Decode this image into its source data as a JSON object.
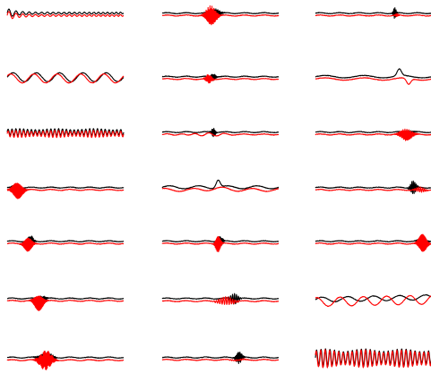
{
  "chart_data": {
    "type": "line",
    "layout": {
      "rows": 7,
      "columns": 3
    },
    "axes_visible": false,
    "grid": false,
    "legend": "none",
    "colors": {
      "series_a": "#000000",
      "series_b": "#ff0000",
      "background": "#ffffff"
    },
    "x_range": [
      0,
      1
    ],
    "y_range": [
      -1,
      1
    ],
    "panels": [
      {
        "row": 1,
        "col": 1,
        "pattern": "decaying-chirp",
        "series_a": {
          "offset": 0.12,
          "amplitude": 0.15,
          "burst_center": 0.02,
          "burst_width": 0.08,
          "cycles": 16
        },
        "series_b": {
          "offset": -0.12,
          "amplitude": 0.15,
          "burst_center": 0.02,
          "burst_width": 0.08,
          "cycles": 16
        }
      },
      {
        "row": 1,
        "col": 2,
        "pattern": "centered-burst",
        "series_a": {
          "offset": 0.12,
          "amplitude": 0.5,
          "burst_center": 0.45,
          "burst_width": 0.05,
          "cycles": 120
        },
        "series_b": {
          "offset": -0.12,
          "amplitude": 1.0,
          "burst_center": 0.42,
          "burst_width": 0.05,
          "cycles": 120
        }
      },
      {
        "row": 1,
        "col": 3,
        "pattern": "late-spike",
        "series_a": {
          "offset": 0.12,
          "amplitude": 0.55,
          "burst_center": 0.68,
          "burst_width": 0.015,
          "cycles": 100
        },
        "series_b": {
          "offset": -0.12,
          "amplitude": 0.15,
          "burst_center": 0.7,
          "burst_width": 0.02,
          "cycles": 100
        }
      },
      {
        "row": 2,
        "col": 1,
        "pattern": "sine",
        "series_a": {
          "offset": 0.06,
          "amplitude": 0.45,
          "cycles": 5.0,
          "phase": 0.0
        },
        "series_b": {
          "offset": -0.06,
          "amplitude": 0.45,
          "cycles": 5.0,
          "phase": 0.6
        }
      },
      {
        "row": 2,
        "col": 2,
        "pattern": "centered-burst",
        "series_a": {
          "offset": 0.12,
          "amplitude": 0.35,
          "burst_center": 0.44,
          "burst_width": 0.025,
          "cycles": 130
        },
        "series_b": {
          "offset": -0.12,
          "amplitude": 0.45,
          "burst_center": 0.4,
          "burst_width": 0.03,
          "cycles": 130
        }
      },
      {
        "row": 2,
        "col": 3,
        "pattern": "spike-dip",
        "series_a": {
          "offset": 0.12,
          "amplitude": 0.7,
          "burst_center": 0.72,
          "burst_width": 0.025
        },
        "series_b": {
          "offset": -0.12,
          "amplitude": 0.6,
          "burst_center": 0.8,
          "burst_width": 0.025
        }
      },
      {
        "row": 3,
        "col": 1,
        "pattern": "dense-oscillation",
        "series_a": {
          "offset": 0.12,
          "amplitude": 0.35,
          "cycles": 30
        },
        "series_b": {
          "offset": -0.06,
          "amplitude": 0.35,
          "cycles": 30
        }
      },
      {
        "row": 3,
        "col": 2,
        "pattern": "centered-burst",
        "series_a": {
          "offset": 0.12,
          "amplitude": 0.45,
          "burst_center": 0.44,
          "burst_width": 0.02,
          "cycles": 120
        },
        "series_b": {
          "offset": -0.12,
          "amplitude": 0.15,
          "burst_center": 0.35,
          "burst_width": 0.2,
          "cycles": 8
        }
      },
      {
        "row": 3,
        "col": 3,
        "pattern": "late-burst",
        "series_a": {
          "offset": 0.12,
          "amplitude": 0.2,
          "burst_center": 0.8,
          "burst_width": 0.05,
          "cycles": 70
        },
        "series_b": {
          "offset": -0.12,
          "amplitude": 0.6,
          "burst_center": 0.78,
          "burst_width": 0.06,
          "cycles": 120
        }
      },
      {
        "row": 4,
        "col": 1,
        "pattern": "early-burst",
        "series_a": {
          "offset": 0.12,
          "amplitude": 0.35,
          "burst_center": 0.08,
          "burst_width": 0.035,
          "cycles": 130
        },
        "series_b": {
          "offset": -0.12,
          "amplitude": 0.9,
          "burst_center": 0.09,
          "burst_width": 0.05,
          "cycles": 140
        }
      },
      {
        "row": 4,
        "col": 2,
        "pattern": "bumps",
        "series_a": {
          "offset": 0.15,
          "amplitude": 0.8,
          "burst_center": 0.48,
          "burst_width": 0.025
        },
        "series_b": {
          "offset": -0.12,
          "amplitude": 0.25,
          "burst_center": 0.48,
          "burst_width": 0.1
        }
      },
      {
        "row": 4,
        "col": 3,
        "pattern": "late-spike",
        "series_a": {
          "offset": 0.12,
          "amplitude": 0.7,
          "burst_center": 0.84,
          "burst_width": 0.03,
          "cycles": 80
        },
        "series_b": {
          "offset": -0.12,
          "amplitude": 0.25,
          "burst_center": 0.9,
          "burst_width": 0.05,
          "cycles": 60
        }
      },
      {
        "row": 5,
        "col": 1,
        "pattern": "early-burst",
        "series_a": {
          "offset": 0.12,
          "amplitude": 0.55,
          "burst_center": 0.2,
          "burst_width": 0.03,
          "cycles": 130
        },
        "series_b": {
          "offset": -0.12,
          "amplitude": 0.8,
          "burst_center": 0.18,
          "burst_width": 0.04,
          "cycles": 140
        }
      },
      {
        "row": 5,
        "col": 2,
        "pattern": "centered-burst",
        "series_a": {
          "offset": 0.12,
          "amplitude": 0.5,
          "burst_center": 0.5,
          "burst_width": 0.025,
          "cycles": 130
        },
        "series_b": {
          "offset": -0.12,
          "amplitude": 0.9,
          "burst_center": 0.48,
          "burst_width": 0.025,
          "cycles": 140
        }
      },
      {
        "row": 5,
        "col": 3,
        "pattern": "late-burst",
        "series_a": {
          "offset": 0.12,
          "amplitude": 0.6,
          "burst_center": 0.92,
          "burst_width": 0.035,
          "cycles": 130
        },
        "series_b": {
          "offset": -0.12,
          "amplitude": 1.0,
          "burst_center": 0.92,
          "burst_width": 0.04,
          "cycles": 140
        }
      },
      {
        "row": 6,
        "col": 1,
        "pattern": "centered-burst",
        "series_a": {
          "offset": 0.12,
          "amplitude": 0.3,
          "burst_center": 0.3,
          "burst_width": 0.04,
          "cycles": 130
        },
        "series_b": {
          "offset": -0.12,
          "amplitude": 0.95,
          "burst_center": 0.27,
          "burst_width": 0.045,
          "cycles": 140
        }
      },
      {
        "row": 6,
        "col": 2,
        "pattern": "late-burst",
        "series_a": {
          "offset": 0.12,
          "amplitude": 0.55,
          "burst_center": 0.62,
          "burst_width": 0.04,
          "cycles": 60
        },
        "series_b": {
          "offset": -0.15,
          "amplitude": 0.4,
          "burst_center": 0.55,
          "burst_width": 0.08,
          "cycles": 50
        }
      },
      {
        "row": 6,
        "col": 3,
        "pattern": "sine-rising",
        "series_a": {
          "offset": 0.12,
          "amplitude": 0.25,
          "cycles": 4.5,
          "phase": 0.0
        },
        "series_b": {
          "offset": -0.12,
          "amplitude": 0.45,
          "cycles": 5.0,
          "phase": 1.2
        }
      },
      {
        "row": 7,
        "col": 1,
        "pattern": "centered-burst",
        "series_a": {
          "offset": 0.12,
          "amplitude": 0.55,
          "burst_center": 0.33,
          "burst_width": 0.06,
          "cycles": 120
        },
        "series_b": {
          "offset": -0.15,
          "amplitude": 1.0,
          "burst_center": 0.33,
          "burst_width": 0.06,
          "cycles": 130
        }
      },
      {
        "row": 7,
        "col": 2,
        "pattern": "late-burst",
        "series_a": {
          "offset": 0.12,
          "amplitude": 0.6,
          "burst_center": 0.66,
          "burst_width": 0.03,
          "cycles": 120
        },
        "series_b": {
          "offset": -0.12,
          "amplitude": 0.06,
          "burst_center": 0.66,
          "burst_width": 0.1,
          "cycles": 60
        }
      },
      {
        "row": 7,
        "col": 3,
        "pattern": "dense-oscillation",
        "series_a": {
          "offset": 0.1,
          "amplitude": 0.9,
          "cycles": 26
        },
        "series_b": {
          "offset": 0.0,
          "amplitude": 0.9,
          "cycles": 26,
          "phase": 0.5
        }
      }
    ]
  }
}
